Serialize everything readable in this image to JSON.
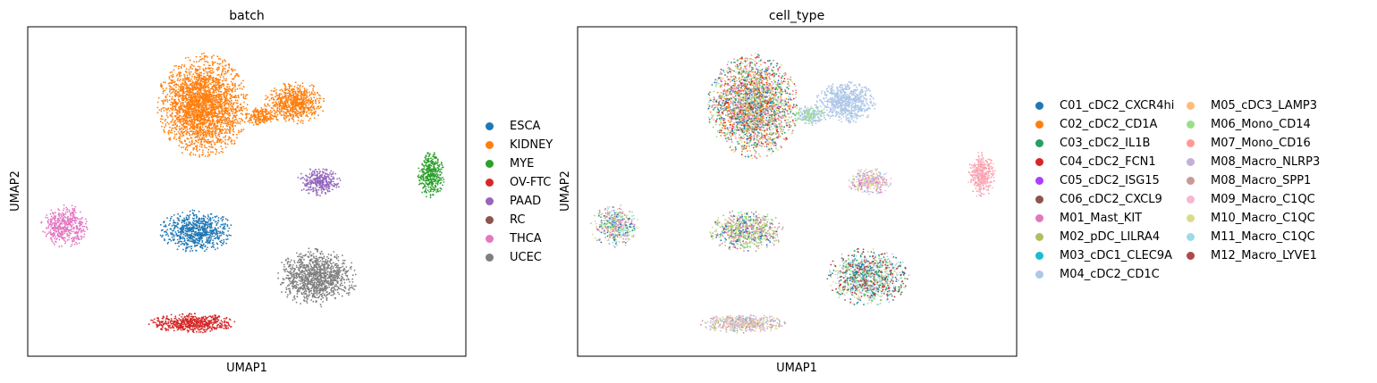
{
  "chart_data": [
    {
      "type": "scatter",
      "title": "batch",
      "xlabel": "UMAP1",
      "ylabel": "UMAP2",
      "xlim": [
        0,
        100
      ],
      "ylim": [
        0,
        100
      ],
      "grid": false,
      "legend_placement": "right",
      "legend": [
        {
          "name": "ESCA",
          "color": "#1f77b4"
        },
        {
          "name": "KIDNEY",
          "color": "#ff7f0e"
        },
        {
          "name": "MYE",
          "color": "#2ca02c"
        },
        {
          "name": "OV-FTC",
          "color": "#d62728"
        },
        {
          "name": "PAAD",
          "color": "#9467bd"
        },
        {
          "name": "RC",
          "color": "#8c564b"
        },
        {
          "name": "THCA",
          "color": "#e377c2"
        },
        {
          "name": "UCEC",
          "color": "#7f7f7f"
        }
      ],
      "clusters": [
        {
          "series": "KIDNEY",
          "cx": 40,
          "cy": 76,
          "rx": 10.5,
          "ry": 16,
          "n": 2600
        },
        {
          "series": "KIDNEY",
          "cx": 61,
          "cy": 77,
          "rx": 7,
          "ry": 6.5,
          "n": 700
        },
        {
          "series": "KIDNEY",
          "cx": 53,
          "cy": 73,
          "rx": 4,
          "ry": 3,
          "n": 200
        },
        {
          "series": "MYE",
          "cx": 92,
          "cy": 55,
          "rx": 3.2,
          "ry": 7,
          "n": 380
        },
        {
          "series": "PAAD",
          "cx": 66.5,
          "cy": 53,
          "rx": 5,
          "ry": 4.3,
          "n": 330
        },
        {
          "series": "THCA",
          "cx": 8.5,
          "cy": 39.5,
          "rx": 5.5,
          "ry": 6.5,
          "n": 450
        },
        {
          "series": "ESCA",
          "cx": 38.5,
          "cy": 38,
          "rx": 8.5,
          "ry": 6.5,
          "n": 700
        },
        {
          "series": "UCEC",
          "cx": 66,
          "cy": 24,
          "rx": 9.5,
          "ry": 9,
          "n": 1100
        },
        {
          "series": "OV-FTC",
          "cx": 37.5,
          "cy": 10,
          "rx": 10,
          "ry": 3,
          "n": 550
        }
      ]
    },
    {
      "type": "scatter",
      "title": "cell_type",
      "xlabel": "UMAP1",
      "ylabel": "UMAP2",
      "xlim": [
        0,
        100
      ],
      "ylim": [
        0,
        100
      ],
      "grid": false,
      "legend_placement": "right",
      "legend": [
        {
          "name": "C01_cDC2_CXCR4hi",
          "color": "#1f77b4"
        },
        {
          "name": "C02_cDC2_CD1A",
          "color": "#ff7f0e"
        },
        {
          "name": "C03_cDC2_IL1B",
          "color": "#279e68"
        },
        {
          "name": "C04_cDC2_FCN1",
          "color": "#d62728"
        },
        {
          "name": "C05_cDC2_ISG15",
          "color": "#aa40fc"
        },
        {
          "name": "C06_cDC2_CXCL9",
          "color": "#8c564b"
        },
        {
          "name": "M01_Mast_KIT",
          "color": "#e377c2"
        },
        {
          "name": "M02_pDC_LILRA4",
          "color": "#b5bd61"
        },
        {
          "name": "M03_cDC1_CLEC9A",
          "color": "#17becf"
        },
        {
          "name": "M04_cDC2_CD1C",
          "color": "#aec7e8"
        },
        {
          "name": "M05_cDC3_LAMP3",
          "color": "#ffbb78"
        },
        {
          "name": "M06_Mono_CD14",
          "color": "#98df8a"
        },
        {
          "name": "M07_Mono_CD16",
          "color": "#ff9896"
        },
        {
          "name": "M08_Macro_NLRP3",
          "color": "#c5b0d5"
        },
        {
          "name": "M08_Macro_SPP1",
          "color": "#c49c94"
        },
        {
          "name": "M09_Macro_C1QC",
          "color": "#f7b6d2"
        },
        {
          "name": "M10_Macro_C1QC",
          "color": "#dbdb8d"
        },
        {
          "name": "M11_Macro_C1QC",
          "color": "#9edae5"
        },
        {
          "name": "M12_Macro_LYVE1",
          "color": "#ad494a"
        }
      ],
      "clusters": [
        {
          "series": [
            "C02_cDC2_CD1A",
            "C03_cDC2_IL1B",
            "C04_cDC2_FCN1",
            "M01_Mast_KIT",
            "M06_Mono_CD14",
            "M07_Mono_CD16",
            "M10_Macro_C1QC",
            "M02_pDC_LILRA4",
            "C01_cDC2_CXCR4hi",
            "M04_cDC2_CD1C"
          ],
          "cx": 40,
          "cy": 76,
          "rx": 10.5,
          "ry": 16,
          "n": 2600
        },
        {
          "series": [
            "M04_cDC2_CD1C"
          ],
          "cx": 61,
          "cy": 77,
          "rx": 7,
          "ry": 6.5,
          "n": 700
        },
        {
          "series": [
            "M04_cDC2_CD1C",
            "M06_Mono_CD14"
          ],
          "cx": 53,
          "cy": 73,
          "rx": 4,
          "ry": 3,
          "n": 200
        },
        {
          "series": [
            "M07_Mono_CD16",
            "M09_Macro_C1QC"
          ],
          "cx": 92,
          "cy": 55,
          "rx": 3.2,
          "ry": 7,
          "n": 380
        },
        {
          "series": [
            "M01_Mast_KIT",
            "M10_Macro_C1QC",
            "M04_cDC2_CD1C",
            "M09_Macro_C1QC"
          ],
          "cx": 66.5,
          "cy": 53,
          "rx": 5,
          "ry": 4.3,
          "n": 330
        },
        {
          "series": [
            "M10_Macro_C1QC",
            "M01_Mast_KIT",
            "M11_Macro_C1QC",
            "C01_cDC2_CXCR4hi",
            "M08_Macro_SPP1",
            "M06_Mono_CD14"
          ],
          "cx": 8.5,
          "cy": 39.5,
          "rx": 5.5,
          "ry": 6.5,
          "n": 450
        },
        {
          "series": [
            "M10_Macro_C1QC",
            "M01_Mast_KIT",
            "M06_Mono_CD14",
            "C01_cDC2_CXCR4hi",
            "M08_Macro_SPP1",
            "M02_pDC_LILRA4"
          ],
          "cx": 38.5,
          "cy": 38,
          "rx": 8.5,
          "ry": 6.5,
          "n": 700
        },
        {
          "series": [
            "M06_Mono_CD14",
            "C01_cDC2_CXCR4hi",
            "C06_cDC2_CXCL9",
            "M04_cDC2_CD1C",
            "C04_cDC2_FCN1",
            "M10_Macro_C1QC",
            "M11_Macro_C1QC",
            "C03_cDC2_IL1B"
          ],
          "cx": 66,
          "cy": 24,
          "rx": 9.5,
          "ry": 9,
          "n": 1100
        },
        {
          "series": [
            "M09_Macro_C1QC",
            "M08_Macro_SPP1",
            "M04_cDC2_CD1C",
            "M10_Macro_C1QC"
          ],
          "cx": 37.5,
          "cy": 10,
          "rx": 10,
          "ry": 3,
          "n": 550
        }
      ]
    }
  ]
}
